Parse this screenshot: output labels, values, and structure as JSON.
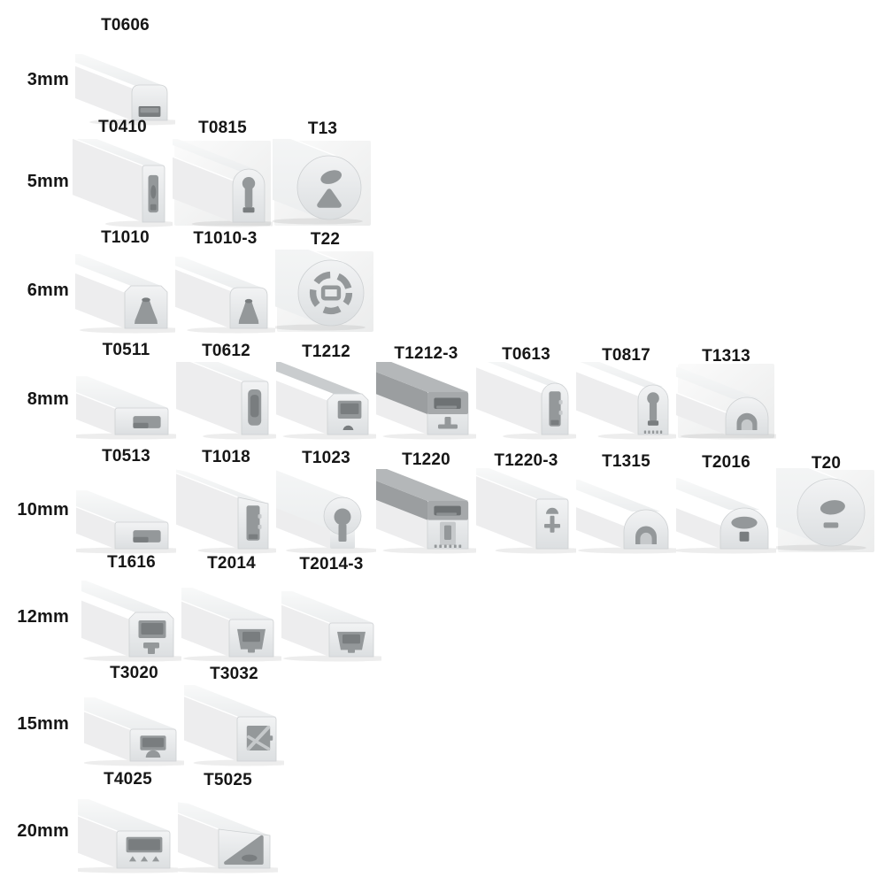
{
  "page": {
    "background": "#ffffff"
  },
  "colors": {
    "background": "#ffffff",
    "label_text": "#161616",
    "body_light": "#f2f3f4",
    "body_shade": "#dcdfe1",
    "top_face": "#f8f9f9",
    "side_face": "#ededee",
    "edge": "#cdd0d2",
    "cavity": "#94989a",
    "cavity_dark": "#797d7f",
    "cavity_light": "#c6c9cb",
    "cap_top": "#b4b7b9",
    "cap_front": "#a6a9ab",
    "cap_side": "#9b9ea0",
    "cap_cavity": "#6e7274",
    "backdrop_light": "#fbfbfb",
    "backdrop_dark": "#ebecec",
    "shadow": "rgba(0,0,0,0.07)"
  },
  "catalog": {
    "rows": [
      {
        "size": "3mm",
        "items": [
          {
            "model": "T0606",
            "shape": "square-dome"
          }
        ]
      },
      {
        "size": "5mm",
        "items": [
          {
            "model": "T0410",
            "shape": "tall-rect"
          },
          {
            "model": "T0815",
            "shape": "tall-dome"
          },
          {
            "model": "T13",
            "shape": "round-tube"
          }
        ]
      },
      {
        "size": "6mm",
        "items": [
          {
            "model": "T1010",
            "shape": "square-trap"
          },
          {
            "model": "T1010-3",
            "shape": "square-dome"
          },
          {
            "model": "T22",
            "shape": "round-tube"
          }
        ]
      },
      {
        "size": "8mm",
        "items": [
          {
            "model": "T0511",
            "shape": "flat-rect"
          },
          {
            "model": "T0612",
            "shape": "tall-rect"
          },
          {
            "model": "T1212",
            "shape": "square-trap"
          },
          {
            "model": "T1212-3",
            "shape": "square-graycap"
          },
          {
            "model": "T0613",
            "shape": "tall-dome"
          },
          {
            "model": "T0817",
            "shape": "tall-dome"
          },
          {
            "model": "T1313",
            "shape": "arch"
          }
        ]
      },
      {
        "size": "10mm",
        "items": [
          {
            "model": "T0513",
            "shape": "flat-rect"
          },
          {
            "model": "T1018",
            "shape": "tall-slope"
          },
          {
            "model": "T1023",
            "shape": "circle-top"
          },
          {
            "model": "T1220",
            "shape": "square-graycap"
          },
          {
            "model": "T1220-3",
            "shape": "tall-rect"
          },
          {
            "model": "T1315",
            "shape": "arch"
          },
          {
            "model": "T2016",
            "shape": "wide-dome"
          },
          {
            "model": "T20",
            "shape": "round-tube"
          }
        ]
      },
      {
        "size": "12mm",
        "items": [
          {
            "model": "T1616",
            "shape": "square-trap"
          },
          {
            "model": "T2014",
            "shape": "wide-rect"
          },
          {
            "model": "T2014-3",
            "shape": "wide-rect"
          }
        ]
      },
      {
        "size": "15mm",
        "items": [
          {
            "model": "T3020",
            "shape": "wide-rect"
          },
          {
            "model": "T3032",
            "shape": "square-rect"
          }
        ]
      },
      {
        "size": "20mm",
        "items": [
          {
            "model": "T4025",
            "shape": "wide-rect"
          },
          {
            "model": "T5025",
            "shape": "wide-slope"
          }
        ]
      }
    ]
  }
}
